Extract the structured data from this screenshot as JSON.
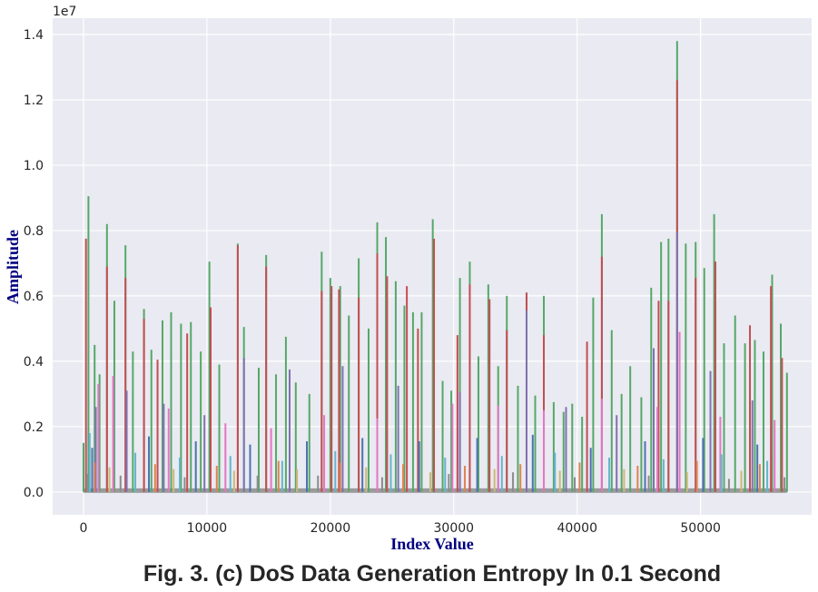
{
  "chart_data": {
    "type": "line",
    "title": "",
    "caption": "Fig. 3. (c) DoS Data Generation Entropy In 0.1 Second",
    "xlabel": "Index Value",
    "ylabel": "Amplitude",
    "y_offset_label": "1e7",
    "xlim": [
      -2500,
      59000
    ],
    "ylim": [
      -700000,
      14500000
    ],
    "x_ticks": [
      0,
      10000,
      20000,
      30000,
      40000,
      50000
    ],
    "x_tick_labels": [
      "0",
      "10000",
      "20000",
      "30000",
      "40000",
      "50000"
    ],
    "y_ticks": [
      0,
      2000000,
      4000000,
      6000000,
      8000000,
      10000000,
      12000000,
      14000000
    ],
    "y_tick_labels": [
      "0.0",
      "0.2",
      "0.4",
      "0.6",
      "0.8",
      "1.0",
      "1.2",
      "1.4"
    ],
    "grid": true,
    "legend": "none",
    "background": "#eaeaf2",
    "series": [
      {
        "color": "#55a868",
        "x": [
          0,
          400,
          900,
          1300,
          1900,
          2500,
          3400,
          4000,
          4900,
          5500,
          6400,
          7100,
          7900,
          8700,
          9500,
          10200,
          11000,
          12500,
          13000,
          14200,
          14800,
          15600,
          16400,
          17200,
          18300,
          19300,
          20000,
          20800,
          21500,
          22300,
          23100,
          23800,
          24500,
          25300,
          26000,
          26700,
          27400,
          28300,
          29100,
          29800,
          30500,
          31300,
          32000,
          32800,
          33600,
          34300,
          35200,
          35900,
          36600,
          37300,
          38100,
          38900,
          39600,
          40400,
          41300,
          42000,
          42800,
          43600,
          44300,
          45200,
          46000,
          46800,
          47400,
          48100,
          48800,
          49600,
          50300,
          51100,
          51900,
          52800,
          53600,
          54400,
          55100,
          55800,
          56500,
          57000
        ],
        "values": [
          1500000,
          9050000,
          4500000,
          3600000,
          8200000,
          5850000,
          7550000,
          4300000,
          5600000,
          4350000,
          5250000,
          5500000,
          5150000,
          5200000,
          4300000,
          7050000,
          3900000,
          7600000,
          5050000,
          3800000,
          7250000,
          3600000,
          4750000,
          3350000,
          3000000,
          7350000,
          6550000,
          6300000,
          5400000,
          7150000,
          5000000,
          8250000,
          7800000,
          6450000,
          5700000,
          5500000,
          5500000,
          8350000,
          3400000,
          3100000,
          6550000,
          7050000,
          4150000,
          6350000,
          3850000,
          6000000,
          3250000,
          6100000,
          2950000,
          6000000,
          2750000,
          2450000,
          2700000,
          2300000,
          5950000,
          8500000,
          4950000,
          3000000,
          3850000,
          2900000,
          6250000,
          7650000,
          7750000,
          13800000,
          7600000,
          7650000,
          6850000,
          8500000,
          4550000,
          5400000,
          4550000,
          4650000,
          4300000,
          6650000,
          5150000,
          3650000
        ]
      },
      {
        "color": "#c44e52",
        "x": [
          200,
          1900,
          3400,
          4900,
          6000,
          8400,
          10300,
          12500,
          14800,
          19300,
          20100,
          20700,
          22300,
          23800,
          24600,
          26200,
          27100,
          28400,
          30300,
          31300,
          32900,
          34300,
          35900,
          37300,
          40800,
          42000,
          46600,
          47400,
          48100,
          49600,
          51200,
          54000,
          55700,
          56600
        ],
        "values": [
          7750000,
          6900000,
          6550000,
          5300000,
          4050000,
          4850000,
          5650000,
          7550000,
          6900000,
          6150000,
          6300000,
          6200000,
          5950000,
          7300000,
          6600000,
          6300000,
          5000000,
          7750000,
          4800000,
          6350000,
          5900000,
          4950000,
          6100000,
          4800000,
          4600000,
          7200000,
          5850000,
          5850000,
          12600000,
          6550000,
          7050000,
          5100000,
          6300000,
          4100000
        ]
      },
      {
        "color": "#8172b2",
        "x": [
          1000,
          3500,
          6500,
          9800,
          13000,
          16700,
          21000,
          25500,
          30500,
          35900,
          39100,
          43200,
          46200,
          48100,
          50800,
          54200
        ],
        "values": [
          2600000,
          3100000,
          2700000,
          2350000,
          4100000,
          3750000,
          3850000,
          3250000,
          3050000,
          5550000,
          2600000,
          2350000,
          4400000,
          7950000,
          3700000,
          2800000
        ]
      },
      {
        "color": "#e377c2",
        "x": [
          1200,
          2400,
          6900,
          11500,
          15200,
          19500,
          23800,
          29900,
          33600,
          37300,
          42000,
          46500,
          48300,
          51600,
          56000
        ],
        "values": [
          3300000,
          3550000,
          2550000,
          2100000,
          1950000,
          2350000,
          2250000,
          2700000,
          2650000,
          2500000,
          2850000,
          2600000,
          4900000,
          2300000,
          2200000
        ]
      },
      {
        "color": "#4c72b0",
        "x": [
          700,
          5300,
          9100,
          13500,
          18100,
          22600,
          27200,
          31900,
          36400,
          41100,
          45500,
          50200,
          54600
        ],
        "values": [
          1350000,
          1700000,
          1550000,
          1450000,
          1550000,
          1650000,
          1550000,
          1650000,
          1750000,
          1350000,
          1550000,
          1650000,
          1450000
        ]
      },
      {
        "color": "#64b5cd",
        "x": [
          500,
          4200,
          7800,
          11900,
          16100,
          20400,
          24900,
          29300,
          33900,
          38200,
          42600,
          47000,
          51700,
          55400
        ],
        "values": [
          1800000,
          1200000,
          1050000,
          1100000,
          950000,
          1250000,
          1150000,
          1050000,
          1100000,
          1200000,
          1050000,
          1000000,
          1150000,
          950000
        ]
      },
      {
        "color": "#dd8452",
        "x": [
          900,
          5800,
          10800,
          15800,
          20800,
          25900,
          30900,
          35400,
          40200,
          44900,
          49700,
          54800
        ],
        "values": [
          900000,
          850000,
          800000,
          950000,
          900000,
          850000,
          800000,
          850000,
          900000,
          800000,
          950000,
          850000
        ]
      },
      {
        "color": "#ccb974",
        "x": [
          2100,
          7300,
          12200,
          17300,
          22900,
          28100,
          33300,
          38600,
          43800,
          48900,
          53300
        ],
        "values": [
          750000,
          700000,
          650000,
          700000,
          750000,
          600000,
          700000,
          650000,
          700000,
          600000,
          650000
        ]
      },
      {
        "color": "#8c8c8c",
        "x": [
          300,
          3000,
          8200,
          14100,
          19000,
          24200,
          29600,
          34800,
          39800,
          45800,
          52300,
          56800
        ],
        "values": [
          550000,
          500000,
          450000,
          500000,
          500000,
          450000,
          550000,
          600000,
          450000,
          500000,
          400000,
          450000
        ]
      }
    ]
  }
}
